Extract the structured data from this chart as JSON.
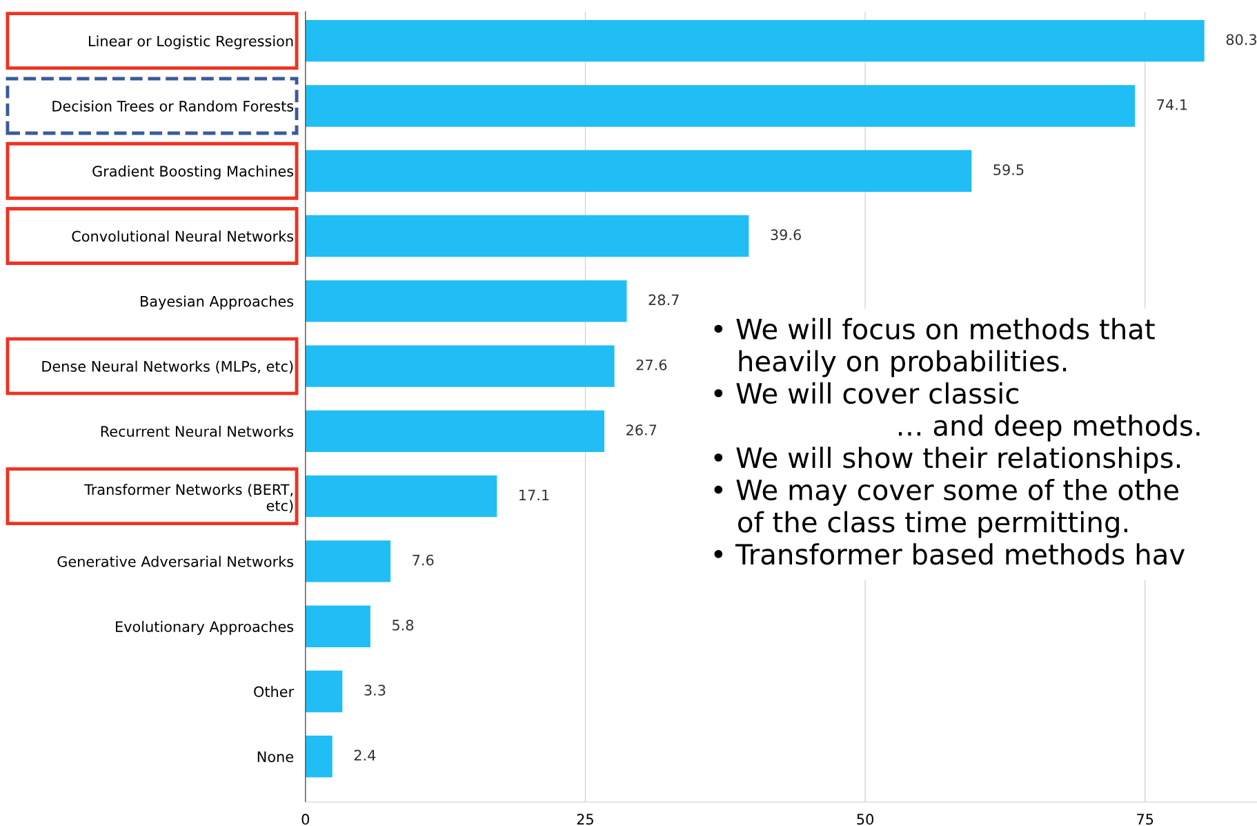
{
  "chart_data": {
    "type": "bar",
    "orientation": "horizontal",
    "categories": [
      "Linear or Logistic Regression",
      "Decision Trees or Random Forests",
      "Gradient Boosting Machines",
      "Convolutional Neural Networks",
      "Bayesian Approaches",
      "Dense Neural Networks (MLPs, etc)",
      "Recurrent Neural Networks",
      "Transformer Networks (BERT,\netc)",
      "Generative Adversarial Networks",
      "Evolutionary Approaches",
      "Other",
      "None"
    ],
    "values": [
      80.3,
      74.1,
      59.5,
      39.6,
      28.7,
      27.6,
      26.7,
      17.1,
      7.6,
      5.8,
      3.3,
      2.4
    ],
    "color": "#21bdf5",
    "data_labels": true,
    "xlim": [
      0,
      85
    ],
    "xticks": [
      0,
      25,
      50,
      75
    ],
    "grid": "x",
    "annotations": [
      "• We will focus on methods that\n   heavily on probabilities.\n• We will cover classic\n                     … and deep methods.\n• We will show their relationships.\n• We may cover some of the othe\n   of the class time permitting.\n• Transformer based methods hav"
    ]
  }
}
